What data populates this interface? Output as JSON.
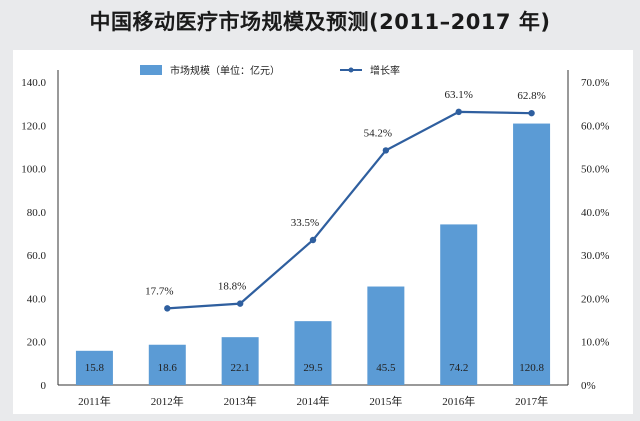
{
  "chart_data": {
    "type": "bar+line",
    "title": "中国移动医疗市场规模及预测(2011–2017 年)",
    "categories": [
      "2011年",
      "2012年",
      "2013年",
      "2014年",
      "2015年",
      "2016年",
      "2017年"
    ],
    "series": [
      {
        "name": "市场规模（单位：亿元）",
        "type": "bar",
        "axis": "left",
        "color": "#5b9bd5",
        "values": [
          15.8,
          18.6,
          22.1,
          29.5,
          45.5,
          74.2,
          120.8
        ],
        "labels": [
          "15.8",
          "18.6",
          "22.1",
          "29.5",
          "45.5",
          "74.2",
          "120.8"
        ]
      },
      {
        "name": "增长率",
        "type": "line",
        "axis": "right",
        "color": "#2f5f9f",
        "values": [
          null,
          17.7,
          18.8,
          33.5,
          54.2,
          63.1,
          62.8
        ],
        "labels": [
          "",
          "17.7%",
          "18.8%",
          "33.5%",
          "54.2%",
          "63.1%",
          "62.8%"
        ]
      }
    ],
    "y_left": {
      "range": [
        0,
        140
      ],
      "ticks": [
        "0",
        "20.0",
        "40.0",
        "60.0",
        "80.0",
        "100.0",
        "120.0",
        "140.0"
      ]
    },
    "y_right": {
      "range": [
        0,
        70
      ],
      "ticks": [
        "0%",
        "10.0%",
        "20.0%",
        "30.0%",
        "40.0%",
        "50.0%",
        "60.0%",
        "70.0%"
      ]
    },
    "legend": "top",
    "grid": false
  }
}
